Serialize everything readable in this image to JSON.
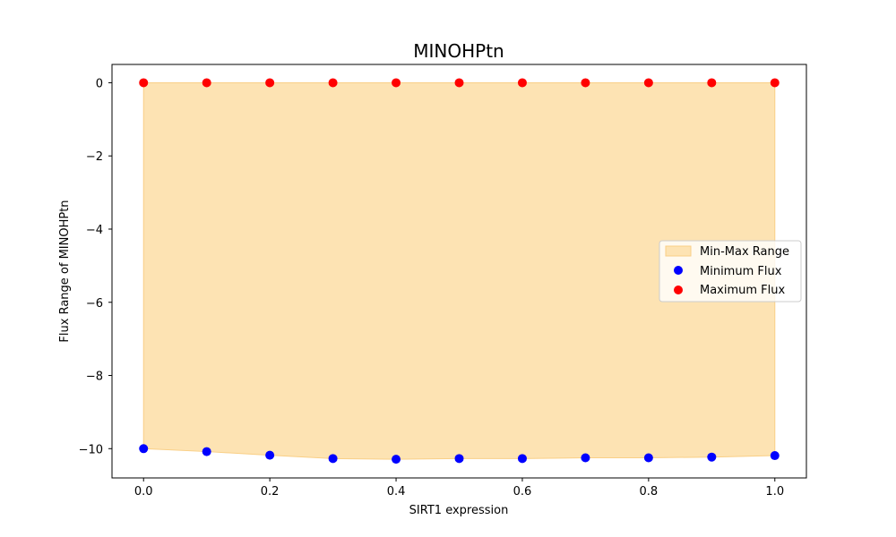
{
  "chart_data": {
    "type": "scatter",
    "title": "MINOHPtn",
    "xlabel": "SIRT1 expression",
    "ylabel": "Flux Range of MINOHPtn",
    "xlim": [
      -0.05,
      1.05
    ],
    "ylim": [
      -10.8,
      0.5
    ],
    "xticks": [
      0.0,
      0.2,
      0.4,
      0.6,
      0.8,
      1.0
    ],
    "xtick_labels": [
      "0.0",
      "0.2",
      "0.4",
      "0.6",
      "0.8",
      "1.0"
    ],
    "yticks": [
      0,
      -2,
      -4,
      -6,
      -8,
      -10
    ],
    "ytick_labels": [
      "0",
      "−2",
      "−4",
      "−6",
      "−8",
      "−10"
    ],
    "grid": false,
    "legend_position": "center-right",
    "x": [
      0.0,
      0.1,
      0.2,
      0.3,
      0.4,
      0.5,
      0.6,
      0.7,
      0.8,
      0.9,
      1.0
    ],
    "series": [
      {
        "name": "Min-Max Range",
        "kind": "fill_between",
        "color": "#fde3b3",
        "edge_color": "#f9cf86"
      },
      {
        "name": "Minimum Flux",
        "kind": "scatter",
        "color": "#0000ff",
        "values": [
          -10.0,
          -10.08,
          -10.18,
          -10.27,
          -10.29,
          -10.27,
          -10.27,
          -10.25,
          -10.25,
          -10.23,
          -10.19
        ]
      },
      {
        "name": "Maximum Flux",
        "kind": "scatter",
        "color": "#ff0000",
        "values": [
          0,
          0,
          0,
          0,
          0,
          0,
          0,
          0,
          0,
          0,
          0
        ]
      }
    ]
  }
}
